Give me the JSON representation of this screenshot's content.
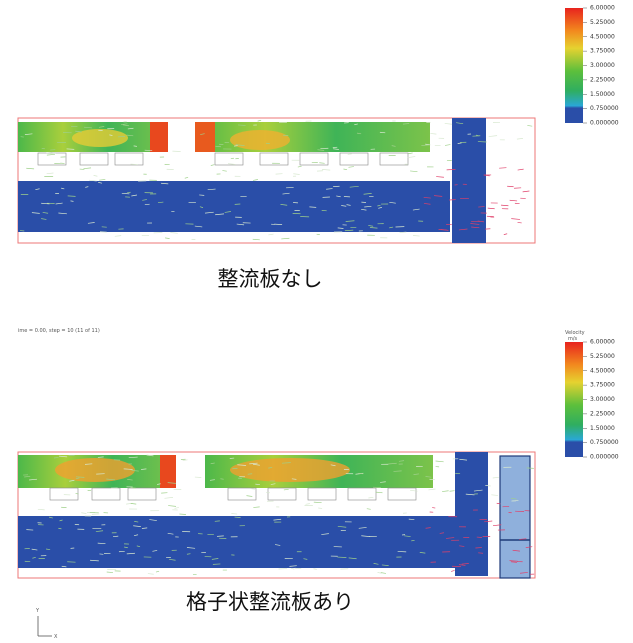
{
  "panels": [
    {
      "caption": "整流板なし",
      "colorbar": {
        "labels": [
          "6.00000",
          "5.25000",
          "4.50000",
          "3.75000",
          "3.00000",
          "2.25000",
          "1.50000",
          "0.750000",
          "0.000000"
        ]
      }
    },
    {
      "header": "ime = 0.00, step = 10 (11 of 11)",
      "caption": "格子状整流板あり",
      "colorbar": {
        "title": [
          "Velocity",
          "m/s"
        ],
        "labels": [
          "6.00000",
          "5.25000",
          "4.50000",
          "3.75000",
          "3.00000",
          "2.25000",
          "1.50000",
          "0.750000",
          "0.000000"
        ]
      }
    }
  ],
  "axes_indicator": {
    "y": "Y",
    "x": "X"
  }
}
